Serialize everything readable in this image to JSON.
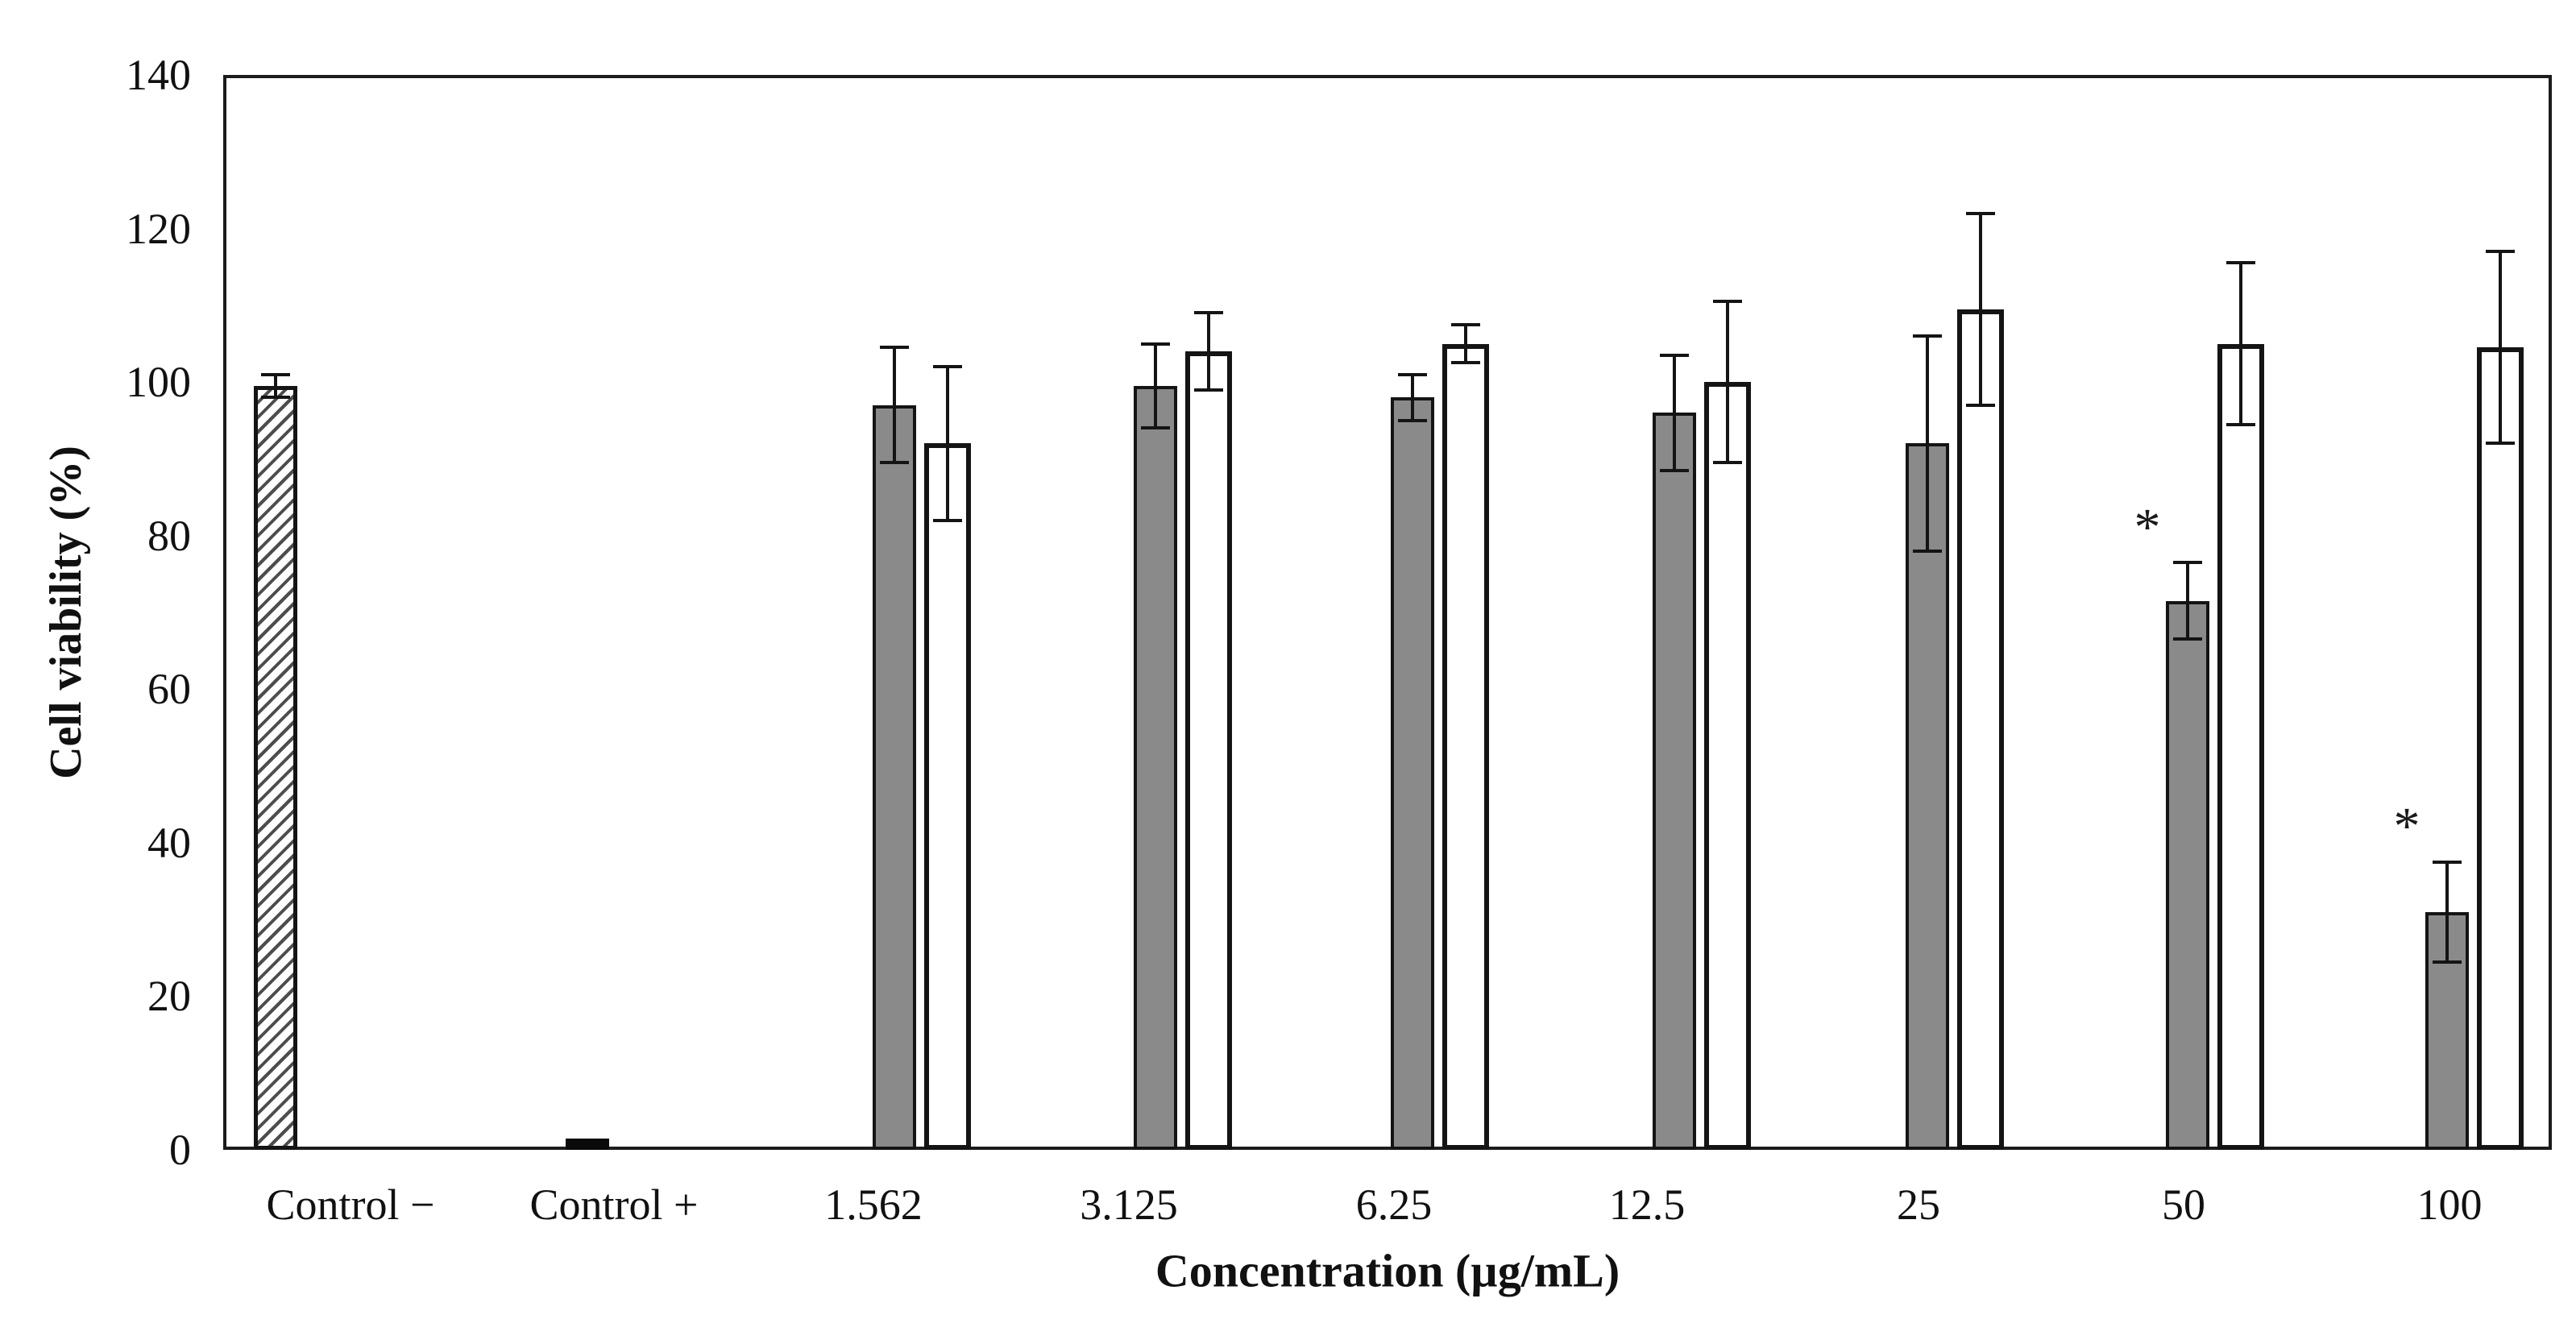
{
  "chart_data": {
    "type": "bar",
    "title": "",
    "xlabel": "Concentration (µg/mL)",
    "ylabel": "Cell viability (%)",
    "ylim": [
      0,
      140
    ],
    "yticks": [
      0,
      20,
      40,
      60,
      80,
      100,
      120,
      140
    ],
    "grid": false,
    "legend": "none",
    "categories": [
      "Control −",
      "Control +",
      "1.562",
      "3.125",
      "6.25",
      "12.5",
      "25",
      "50",
      "100"
    ],
    "groups": [
      {
        "label": "Control −",
        "bars": [
          {
            "style": "hatched",
            "value": 99.5,
            "error": 1.5,
            "sig": ""
          }
        ]
      },
      {
        "label": "Control +",
        "bars": [
          {
            "style": "black",
            "value": 1.5,
            "error": 0,
            "sig": ""
          }
        ]
      },
      {
        "label": "1.562",
        "bars": [
          {
            "style": "gray",
            "value": 97,
            "error": 7.5,
            "sig": ""
          },
          {
            "style": "white",
            "value": 92,
            "error": 10,
            "sig": ""
          }
        ]
      },
      {
        "label": "3.125",
        "bars": [
          {
            "style": "gray",
            "value": 99.5,
            "error": 5.5,
            "sig": ""
          },
          {
            "style": "white",
            "value": 104,
            "error": 5,
            "sig": ""
          }
        ]
      },
      {
        "label": "6.25",
        "bars": [
          {
            "style": "gray",
            "value": 98,
            "error": 3,
            "sig": ""
          },
          {
            "style": "white",
            "value": 105,
            "error": 2.5,
            "sig": ""
          }
        ]
      },
      {
        "label": "12.5",
        "bars": [
          {
            "style": "gray",
            "value": 96,
            "error": 7.5,
            "sig": ""
          },
          {
            "style": "white",
            "value": 100,
            "error": 10.5,
            "sig": ""
          }
        ]
      },
      {
        "label": "25",
        "bars": [
          {
            "style": "gray",
            "value": 92,
            "error": 14,
            "sig": ""
          },
          {
            "style": "white",
            "value": 109.5,
            "error": 12.5,
            "sig": ""
          }
        ]
      },
      {
        "label": "50",
        "bars": [
          {
            "style": "gray",
            "value": 71.5,
            "error": 5,
            "sig": "*"
          },
          {
            "style": "white",
            "value": 105,
            "error": 10.5,
            "sig": ""
          }
        ]
      },
      {
        "label": "100",
        "bars": [
          {
            "style": "gray",
            "value": 31,
            "error": 6.5,
            "sig": "*"
          },
          {
            "style": "white",
            "value": 104.5,
            "error": 12.5,
            "sig": ""
          }
        ]
      }
    ],
    "bar_styles": {
      "hatched": "white bar with diagonal gray hatch stripes",
      "black": "solid black bar",
      "gray": "solid gray filled bar",
      "white": "white bar with black outline"
    },
    "colors": {
      "gray_fill": "#8a8a8a",
      "outline": "#141414",
      "background": "#ffffff"
    }
  }
}
